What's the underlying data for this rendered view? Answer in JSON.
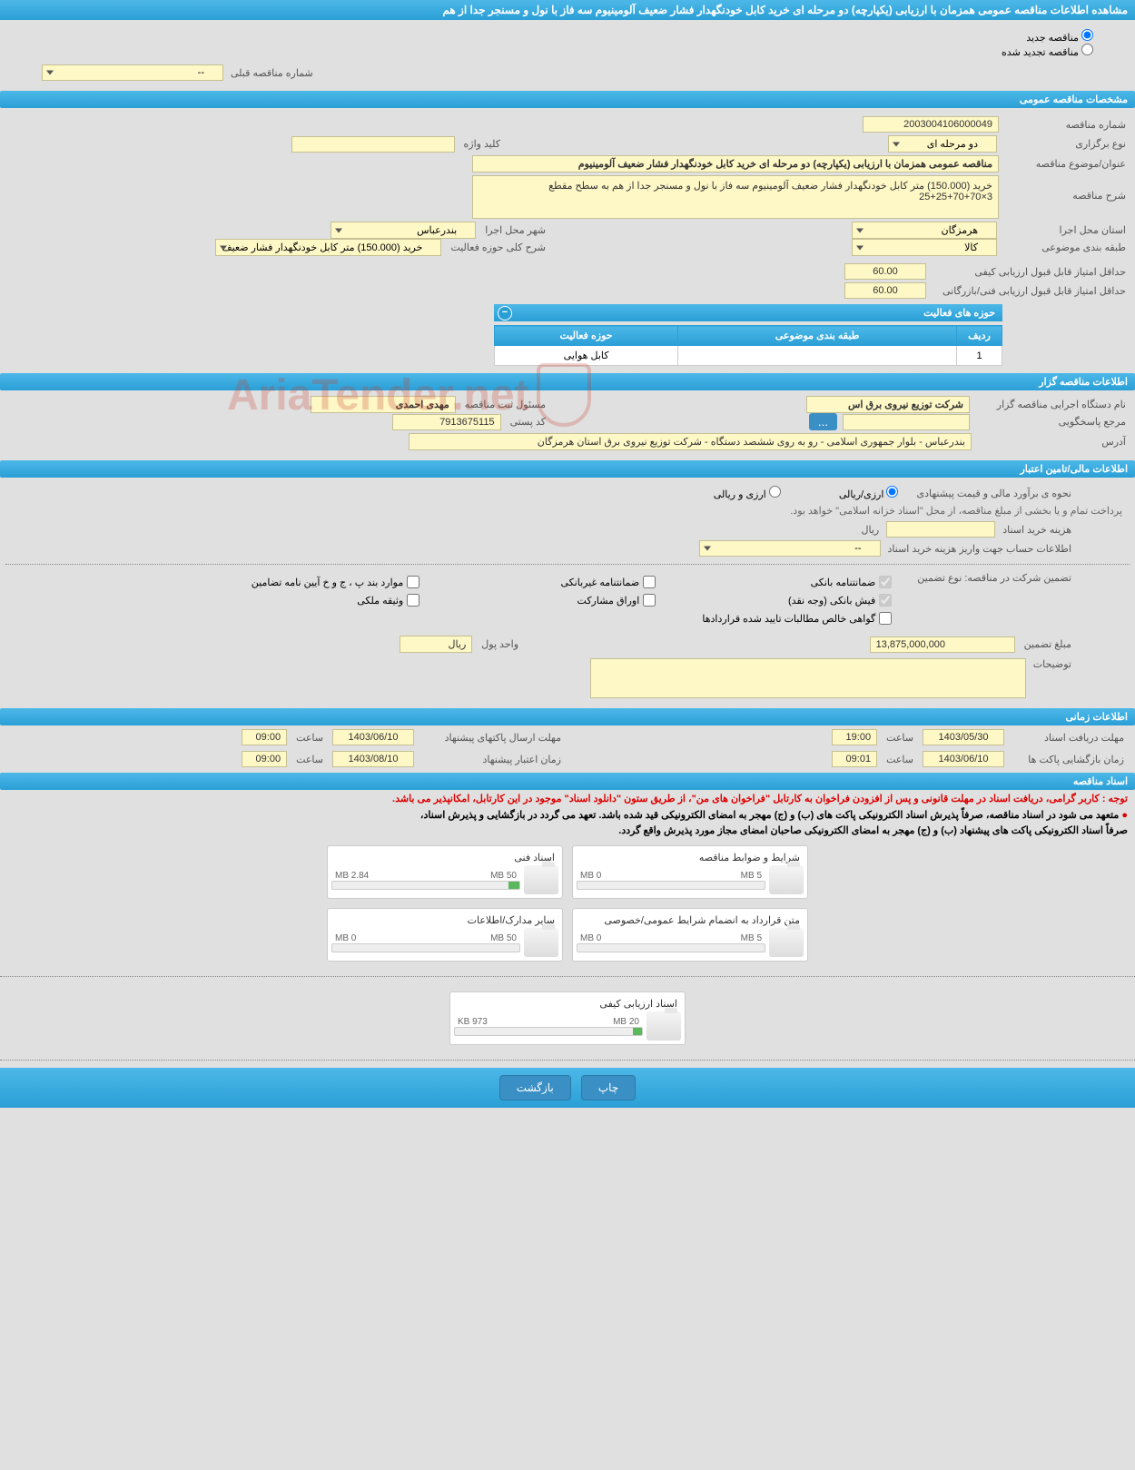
{
  "page_title": "مشاهده اطلاعات مناقصه عمومی همزمان با ارزیابی (یکپارچه) دو مرحله ای خرید کابل خودنگهدار فشار ضعیف آلومینیوم سه فاز با نول و مسنجر جدا از هم",
  "radio": {
    "new": "مناقصه جدید",
    "renewed": "مناقصه تجدید شده"
  },
  "prev_tender_label": "شماره مناقصه قبلی",
  "prev_tender_value": "--",
  "sections": {
    "general": "مشخصات مناقصه عمومی",
    "organizer": "اطلاعات مناقصه گزار",
    "financial": "اطلاعات مالی/تامین اعتبار",
    "timing": "اطلاعات زمانی",
    "documents": "اسناد مناقصه"
  },
  "general": {
    "number_label": "شماره مناقصه",
    "number": "2003004106000049",
    "type_label": "نوع برگزاری",
    "type": "دو مرحله ای",
    "keyword_label": "کلید واژه",
    "keyword": "",
    "subject_label": "عنوان/موضوع مناقصه",
    "subject": "مناقصه عمومی همزمان با ارزیابی (یکپارچه) دو مرحله ای خرید کابل خودنگهدار فشار ضعیف آلومینیوم",
    "desc_label": "شرح مناقصه",
    "desc": "خرید (150.000) متر کابل خودنگهدار فشار ضعیف آلومینیوم سه فاز با نول و مسنجر جدا از هم به سطح مقطع 3×70+70+25+25",
    "province_label": "استان محل اجرا",
    "province": "هرمزگان",
    "city_label": "شهر محل اجرا",
    "city": "بندرعباس",
    "category_label": "طبقه بندی موضوعی",
    "category": "کالا",
    "scope_label": "شرح کلی حوزه فعالیت",
    "scope": "خرید (150.000) متر کابل خودنگهدار فشار ضعیف",
    "min_quality_label": "حداقل امتیاز قابل قبول ارزیابی کیفی",
    "min_quality": "60.00",
    "min_tech_label": "حداقل امتیاز قابل قبول ارزیابی فنی/بازرگانی",
    "min_tech": "60.00",
    "activities_header": "حوزه های فعالیت",
    "activities_cols": {
      "row": "ردیف",
      "category": "طبقه بندی موضوعی",
      "scope": "حوزه فعالیت"
    },
    "activities": [
      {
        "row": "1",
        "category": "",
        "scope": "کابل هوایی"
      }
    ]
  },
  "organizer": {
    "name_label": "نام دستگاه اجرایی مناقصه گزار",
    "name": "شرکت توزیع نیروی برق اس",
    "resp_label": "مسئول ثبت مناقصه",
    "resp": "مهدی احمدی",
    "contact_label": "مرجع پاسخگویی",
    "contact": "",
    "postal_label": "کد پستی",
    "postal": "7913675115",
    "address_label": "آدرس",
    "address": "بندرعباس - بلوار جمهوری اسلامی - رو به روی ششصد دستگاه - شرکت توزیع نیروی برق استان هرمزگان"
  },
  "financial": {
    "estimate_label": "نحوه ی برآورد مالی و قیمت پیشنهادی",
    "opt_rial": "ارزی/ریالی",
    "opt_both": "ارزی و ریالی",
    "payment_note": "پرداخت تمام و یا بخشی از مبلغ مناقصه، از محل \"اسناد خزانه اسلامی\" خواهد بود.",
    "doc_fee_label": "هزینه خرید اسناد",
    "doc_fee_unit": "ریال",
    "doc_fee": "",
    "account_label": "اطلاعات حساب جهت واریز هزینه خرید اسناد",
    "account": "--",
    "guarantee_label": "تضمین شرکت در مناقصه:    نوع تضمین",
    "g1": "ضمانتنامه بانکی",
    "g2": "ضمانتنامه غیربانکی",
    "g3": "موارد بند پ ، ج و خ آیین نامه تضامین",
    "g4": "فیش بانکی (وجه نقد)",
    "g5": "اوراق مشارکت",
    "g6": "وثیقه ملکی",
    "g7": "گواهی خالص مطالبات تایید شده قراردادها",
    "amount_label": "مبلغ تضمین",
    "amount": "13,875,000,000",
    "unit_label": "واحد پول",
    "unit": "ریال",
    "notes_label": "توضیحات"
  },
  "timing": {
    "receive_deadline_label": "مهلت دریافت اسناد",
    "receive_date": "1403/05/30",
    "receive_time": "19:00",
    "submit_deadline_label": "مهلت ارسال پاکتهای پیشنهاد",
    "submit_date": "1403/06/10",
    "submit_time": "09:00",
    "open_label": "زمان بازگشایی پاکت ها",
    "open_date": "1403/06/10",
    "open_time": "09:01",
    "validity_label": "زمان اعتبار پیشنهاد",
    "validity_date": "1403/08/10",
    "validity_time": "09:00",
    "time_label": "ساعت"
  },
  "docs": {
    "notice1": "توجه : کاربر گرامی، دریافت اسناد در مهلت قانونی و پس از افزودن فراخوان به کارتابل \"فراخوان های من\"، از طریق ستون \"دانلود اسناد\" موجود در این کارتابل، امکانپذیر می باشد.",
    "notice2_a": "متعهد می شود در اسناد مناقصه، صرفاً پذیرش اسناد الکترونیکی پاکت های (ب) و (ج) مهجر به امضای الکترونیکی قید شده باشد. تعهد می گردد در بازگشایی و پذیرش اسناد،",
    "notice2_b": "صرفاً اسناد الکترونیکی پاکت های پیشنهاد (ب) و (ج) مهجر به امضای الکترونیکی صاحبان امضای مجاز مورد پذیرش واقع گردد.",
    "items": [
      {
        "title": "شرایط و ضوابط مناقصه",
        "used": "0 MB",
        "total": "5 MB",
        "pct": 0
      },
      {
        "title": "اسناد فنی",
        "used": "2.84 MB",
        "total": "50 MB",
        "pct": 6
      },
      {
        "title": "متن قرارداد به انضمام شرایط عمومی/خصوصی",
        "used": "0 MB",
        "total": "5 MB",
        "pct": 0
      },
      {
        "title": "سایر مدارک/اطلاعات",
        "used": "0 MB",
        "total": "50 MB",
        "pct": 0
      }
    ],
    "single": {
      "title": "اسناد ارزیابی کیفی",
      "used": "973 KB",
      "total": "20 MB",
      "pct": 5
    }
  },
  "buttons": {
    "print": "چاپ",
    "back": "بازگشت"
  },
  "watermark": "AriaTender.net",
  "colors": {
    "header_bg": "#2a9fd6",
    "field_bg": "#fef7c6",
    "btn_bg": "#3a8fc4"
  }
}
